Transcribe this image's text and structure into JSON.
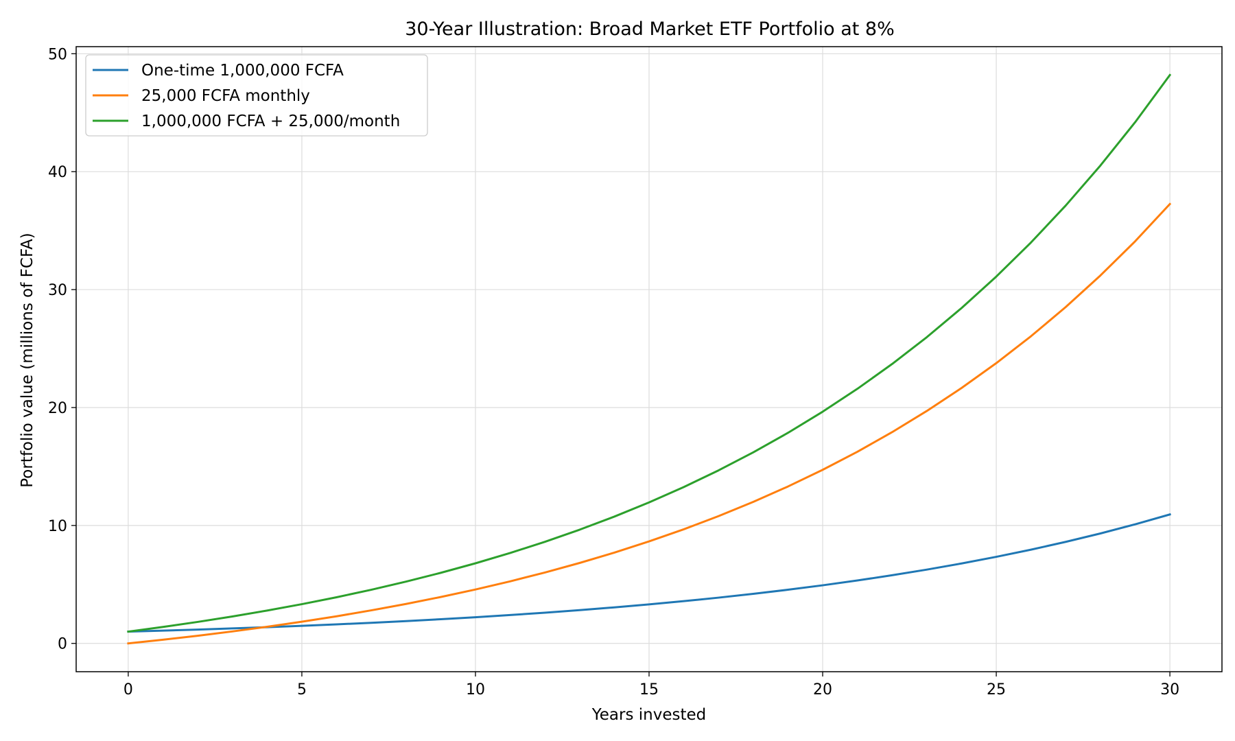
{
  "chart_data": {
    "type": "line",
    "title": "30-Year Illustration: Broad Market ETF Portfolio at 8%",
    "xlabel": "Years invested",
    "ylabel": "Portfolio value (millions of FCFA)",
    "xlim": [
      -1.5,
      31.5
    ],
    "ylim": [
      -2.4,
      50.6
    ],
    "xticks": [
      0,
      5,
      10,
      15,
      20,
      25,
      30
    ],
    "yticks": [
      0,
      10,
      20,
      30,
      40,
      50
    ],
    "grid": true,
    "legend": "top-left",
    "x": [
      0,
      1,
      2,
      3,
      4,
      5,
      6,
      7,
      8,
      9,
      10,
      11,
      12,
      13,
      14,
      15,
      16,
      17,
      18,
      19,
      20,
      21,
      22,
      23,
      24,
      25,
      26,
      27,
      28,
      29,
      30
    ],
    "series": [
      {
        "name": "One-time 1,000,000 FCFA",
        "color": "#1f77b4",
        "values": [
          1.0,
          1.083,
          1.173,
          1.27,
          1.376,
          1.49,
          1.614,
          1.747,
          1.892,
          2.05,
          2.22,
          2.404,
          2.604,
          2.82,
          3.054,
          3.307,
          3.582,
          3.879,
          4.201,
          4.55,
          4.927,
          5.336,
          5.779,
          6.258,
          6.778,
          7.34,
          7.949,
          8.609,
          9.323,
          10.097,
          10.935
        ]
      },
      {
        "name": "25,000 FCFA monthly",
        "color": "#ff7f0e",
        "values": [
          0.0,
          0.311,
          0.649,
          1.014,
          1.41,
          1.837,
          2.3,
          2.802,
          3.346,
          3.934,
          4.572,
          5.263,
          6.011,
          6.821,
          7.698,
          8.648,
          9.677,
          10.791,
          11.997,
          13.304,
          14.719,
          16.252,
          17.912,
          19.71,
          21.656,
          23.764,
          26.047,
          28.52,
          31.198,
          34.097,
          37.258
        ]
      },
      {
        "name": "1,000,000 FCFA + 25,000/month",
        "color": "#2ca02c",
        "values": [
          1.0,
          1.394,
          1.822,
          2.284,
          2.786,
          3.327,
          3.914,
          4.549,
          5.238,
          5.984,
          6.792,
          7.667,
          8.615,
          9.641,
          10.752,
          11.955,
          13.259,
          14.67,
          16.198,
          17.854,
          19.646,
          21.588,
          23.691,
          25.968,
          28.434,
          31.104,
          33.996,
          37.129,
          40.521,
          44.194,
          48.193
        ]
      }
    ]
  }
}
